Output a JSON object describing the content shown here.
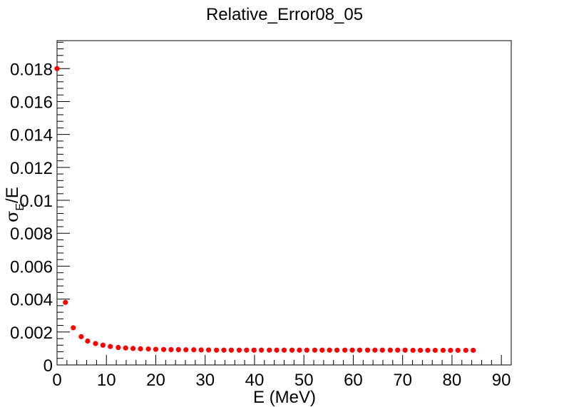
{
  "chart_data": {
    "type": "scatter",
    "title": "Relative_Error08_05",
    "xlabel": "E (MeV)",
    "ylabel": {
      "symbol": "σ",
      "subscript": "E",
      "suffix": "/E"
    },
    "xlim": [
      0,
      92
    ],
    "ylim": [
      0,
      0.0197
    ],
    "x_ticks": [
      0,
      10,
      20,
      30,
      40,
      50,
      60,
      70,
      80,
      90
    ],
    "x_tick_labels": [
      "0",
      "10",
      "20",
      "30",
      "40",
      "50",
      "60",
      "70",
      "80",
      "90"
    ],
    "y_ticks": [
      0,
      0.002,
      0.004,
      0.006,
      0.008,
      0.01,
      0.012,
      0.014,
      0.016,
      0.018
    ],
    "y_tick_labels": [
      "0",
      "0.002",
      "0.004",
      "0.006",
      "0.008",
      "0.01",
      "0.012",
      "0.014",
      "0.016",
      "0.018"
    ],
    "grid": false,
    "marker_color": "#ff0000",
    "series": [
      {
        "name": "Relative_Error08_05",
        "x": [
          0,
          1.7,
          3.3,
          4.9,
          6.2,
          7.8,
          9.3,
          10.8,
          12.4,
          13.9,
          15.4,
          16.9,
          18.5,
          20.0,
          21.6,
          23.1,
          24.6,
          26.1,
          27.7,
          29.2,
          30.7,
          32.3,
          33.8,
          35.3,
          36.9,
          38.4,
          39.9,
          41.4,
          43.0,
          44.5,
          46.0,
          47.6,
          49.1,
          50.6,
          52.2,
          53.7,
          55.2,
          56.7,
          58.3,
          59.8,
          61.3,
          62.9,
          64.4,
          65.9,
          67.5,
          69.0,
          70.5,
          72.1,
          73.6,
          75.1,
          76.6,
          78.2,
          79.7,
          81.2,
          82.8,
          84.3
        ],
        "y": [
          0.018,
          0.0038,
          0.00226,
          0.00172,
          0.00145,
          0.0013,
          0.0012,
          0.00112,
          0.00106,
          0.00103,
          0.001,
          0.00098,
          0.00097,
          0.00095,
          0.00094,
          0.00093,
          0.00093,
          0.00092,
          0.00092,
          0.00091,
          0.00091,
          0.0009,
          0.0009,
          0.0009,
          0.0009,
          0.0009,
          0.0009,
          0.0009,
          0.0009,
          0.0009,
          0.0009,
          0.0009,
          0.0009,
          0.0009,
          0.0009,
          0.0009,
          0.0009,
          0.0009,
          0.0009,
          0.0009,
          0.0009,
          0.0009,
          0.0009,
          0.0009,
          0.0009,
          0.0009,
          0.0009,
          0.00089,
          0.00089,
          0.00089,
          0.00089,
          0.00089,
          0.00089,
          0.00089,
          0.00089,
          0.00089
        ]
      }
    ]
  }
}
